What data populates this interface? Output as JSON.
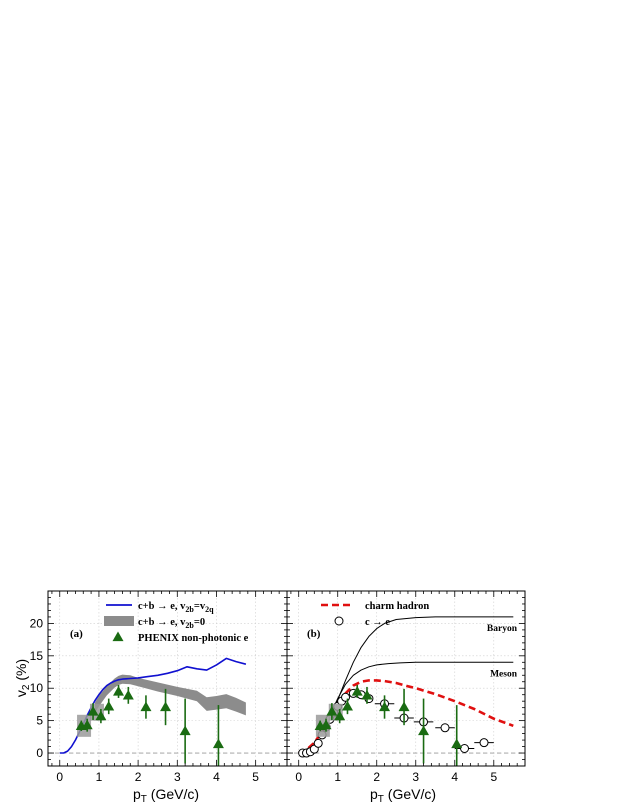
{
  "chart_data": [
    {
      "type": "line",
      "panel_label": "(a)",
      "xlabel": "p_T (GeV/c)",
      "ylabel": "v_2 (%)",
      "xlim": [
        -0.3,
        5.8
      ],
      "ylim": [
        -2,
        25
      ],
      "xticks": [
        0,
        1,
        2,
        3,
        4,
        5
      ],
      "yticks": [
        0,
        5,
        10,
        15,
        20
      ],
      "grid": true,
      "legend_position": "top",
      "legend": [
        {
          "series": "c+b → e, v2b=v2q",
          "label_main": "c+b → e, v",
          "sub1": "2b",
          "eq": "=v",
          "sub2": "2q"
        },
        {
          "series": "c+b → e, v2b=0",
          "label_main": "c+b → e, v",
          "sub1": "2b",
          "eq": "=0",
          "sub2": ""
        },
        {
          "series": "PHENIX non-photonic e",
          "label_main": "PHENIX non-photonic e",
          "sub1": "",
          "eq": "",
          "sub2": ""
        }
      ],
      "series": [
        {
          "name": "c+b → e, v2b=v2q",
          "style": "line",
          "color": "#1010d0",
          "x": [
            0.0,
            0.1,
            0.2,
            0.3,
            0.4,
            0.5,
            0.6,
            0.7,
            0.8,
            0.9,
            1.0,
            1.1,
            1.2,
            1.3,
            1.4,
            1.5,
            1.6,
            1.8,
            2.0,
            2.25,
            2.5,
            2.75,
            3.0,
            3.25,
            3.5,
            3.75,
            4.0,
            4.25,
            4.5,
            4.75
          ],
          "y": [
            0.0,
            0.0,
            0.3,
            1.0,
            2.0,
            3.2,
            4.5,
            5.8,
            7.0,
            8.1,
            9.0,
            9.8,
            10.4,
            10.8,
            11.1,
            11.3,
            11.4,
            11.5,
            11.6,
            11.8,
            12.0,
            12.3,
            12.7,
            13.3,
            13.0,
            12.8,
            13.6,
            14.6,
            14.1,
            13.7
          ]
        },
        {
          "name": "c+b → e, v2b=0",
          "style": "band",
          "color": "#8c8c8c",
          "x": [
            0.9,
            1.0,
            1.2,
            1.4,
            1.5,
            1.6,
            1.8,
            2.0,
            2.5,
            3.0,
            3.5,
            3.75,
            4.0,
            4.25,
            4.5,
            4.75
          ],
          "y_low": [
            6.2,
            7.2,
            8.9,
            10.1,
            10.5,
            10.7,
            10.6,
            10.3,
            9.5,
            8.8,
            8.0,
            6.5,
            6.7,
            6.9,
            6.4,
            5.8
          ],
          "y_high": [
            7.8,
            8.8,
            10.3,
            11.5,
            11.9,
            12.1,
            12.0,
            11.6,
            10.9,
            10.2,
            9.6,
            8.6,
            8.8,
            9.1,
            8.5,
            7.8
          ]
        },
        {
          "name": "PHENIX non-photonic e",
          "style": "markers",
          "marker": "triangle",
          "color": "#1a6b12",
          "x": [
            0.55,
            0.7,
            0.85,
            1.05,
            1.25,
            1.5,
            1.75,
            2.2,
            2.7,
            3.2,
            4.05
          ],
          "y": [
            4.2,
            4.3,
            6.4,
            5.7,
            7.2,
            9.5,
            8.9,
            7.1,
            7.1,
            3.4,
            1.4
          ],
          "yerr": [
            0.8,
            1.0,
            1.3,
            1.1,
            1.2,
            1.0,
            1.3,
            1.8,
            2.8,
            5.0,
            6.0
          ],
          "sys_boxes": [
            {
              "x": 0.62,
              "y": 4.2,
              "half_height": 1.7
            },
            {
              "x": 0.95,
              "y": 6.3,
              "half_height": 1.3
            }
          ]
        }
      ]
    },
    {
      "type": "line",
      "panel_label": "(b)",
      "xlabel": "p_T (GeV/c)",
      "ylabel": "",
      "xlim": [
        -0.3,
        5.8
      ],
      "ylim": [
        -2,
        25
      ],
      "xticks": [
        0,
        1,
        2,
        3,
        4,
        5
      ],
      "yticks": [
        0,
        5,
        10,
        15,
        20
      ],
      "grid": true,
      "legend_position": "top",
      "legend": [
        {
          "series": "charm hadron",
          "label_main": "charm hadron",
          "sub1": "",
          "eq": "",
          "sub2": ""
        },
        {
          "series": "c → e",
          "label_main": "c → e",
          "sub1": "",
          "eq": "",
          "sub2": ""
        }
      ],
      "curve_labels": [
        {
          "text": "Baryon",
          "series": "Baryon"
        },
        {
          "text": "Meson",
          "series": "Meson"
        }
      ],
      "series": [
        {
          "name": "Baryon",
          "style": "line",
          "color": "#000000",
          "x": [
            0.0,
            0.2,
            0.4,
            0.6,
            0.8,
            1.0,
            1.2,
            1.4,
            1.6,
            1.8,
            2.0,
            2.2,
            2.5,
            3.0,
            3.5,
            4.0,
            4.5,
            5.0,
            5.5
          ],
          "y": [
            0.0,
            0.5,
            1.5,
            3.1,
            5.4,
            8.2,
            11.2,
            14.0,
            16.3,
            18.0,
            19.2,
            20.0,
            20.6,
            20.9,
            21.0,
            21.0,
            21.0,
            21.0,
            21.0
          ]
        },
        {
          "name": "Meson",
          "style": "line",
          "color": "#000000",
          "x": [
            0.0,
            0.2,
            0.4,
            0.6,
            0.8,
            1.0,
            1.2,
            1.4,
            1.6,
            1.8,
            2.0,
            2.3,
            2.6,
            3.0,
            3.5,
            4.0,
            4.5,
            5.0,
            5.5
          ],
          "y": [
            0.0,
            0.5,
            1.6,
            3.4,
            5.8,
            8.4,
            10.6,
            12.0,
            12.8,
            13.3,
            13.6,
            13.8,
            13.9,
            14.0,
            14.0,
            14.0,
            14.0,
            14.0,
            14.0
          ]
        },
        {
          "name": "charm hadron",
          "style": "dashed",
          "color": "#e01010",
          "x": [
            0.0,
            0.2,
            0.4,
            0.6,
            0.8,
            1.0,
            1.2,
            1.4,
            1.6,
            1.8,
            2.0,
            2.2,
            2.5,
            2.8,
            3.0,
            3.5,
            4.0,
            4.5,
            5.0,
            5.5
          ],
          "y": [
            0.0,
            0.5,
            1.6,
            3.3,
            5.4,
            7.5,
            9.2,
            10.4,
            11.0,
            11.2,
            11.2,
            11.1,
            10.8,
            10.3,
            10.0,
            9.1,
            8.0,
            6.8,
            5.3,
            4.2
          ]
        },
        {
          "name": "c → e",
          "style": "markers",
          "marker": "open-circle",
          "color": "#000000",
          "x": [
            0.1,
            0.2,
            0.3,
            0.4,
            0.5,
            0.6,
            0.7,
            0.8,
            0.9,
            1.0,
            1.1,
            1.2,
            1.4,
            1.6,
            1.8,
            2.2,
            2.7,
            3.2,
            3.75,
            4.25,
            4.75
          ],
          "y": [
            0.0,
            0.0,
            0.2,
            0.6,
            1.5,
            2.8,
            4.0,
            5.2,
            6.2,
            7.2,
            8.0,
            8.6,
            9.2,
            9.0,
            8.4,
            7.6,
            5.4,
            4.8,
            3.9,
            0.7,
            1.6
          ],
          "xerr": [
            0.05,
            0.05,
            0.05,
            0.05,
            0.05,
            0.05,
            0.05,
            0.05,
            0.05,
            0.05,
            0.05,
            0.05,
            0.1,
            0.1,
            0.1,
            0.25,
            0.25,
            0.25,
            0.25,
            0.25,
            0.25
          ]
        },
        {
          "name": "PHENIX non-photonic e",
          "style": "markers",
          "marker": "triangle",
          "color": "#1a6b12",
          "x": [
            0.55,
            0.7,
            0.85,
            1.05,
            1.25,
            1.5,
            1.75,
            2.2,
            2.7,
            3.2,
            4.05
          ],
          "y": [
            4.2,
            4.3,
            6.4,
            5.7,
            7.2,
            9.5,
            8.9,
            7.1,
            7.1,
            3.4,
            1.4
          ],
          "yerr": [
            0.8,
            1.0,
            1.3,
            1.1,
            1.2,
            1.0,
            1.3,
            1.8,
            2.8,
            5.0,
            6.0
          ],
          "sys_boxes": [
            {
              "x": 0.62,
              "y": 4.2,
              "half_height": 1.7
            },
            {
              "x": 0.95,
              "y": 6.3,
              "half_height": 1.3
            }
          ]
        }
      ]
    }
  ]
}
